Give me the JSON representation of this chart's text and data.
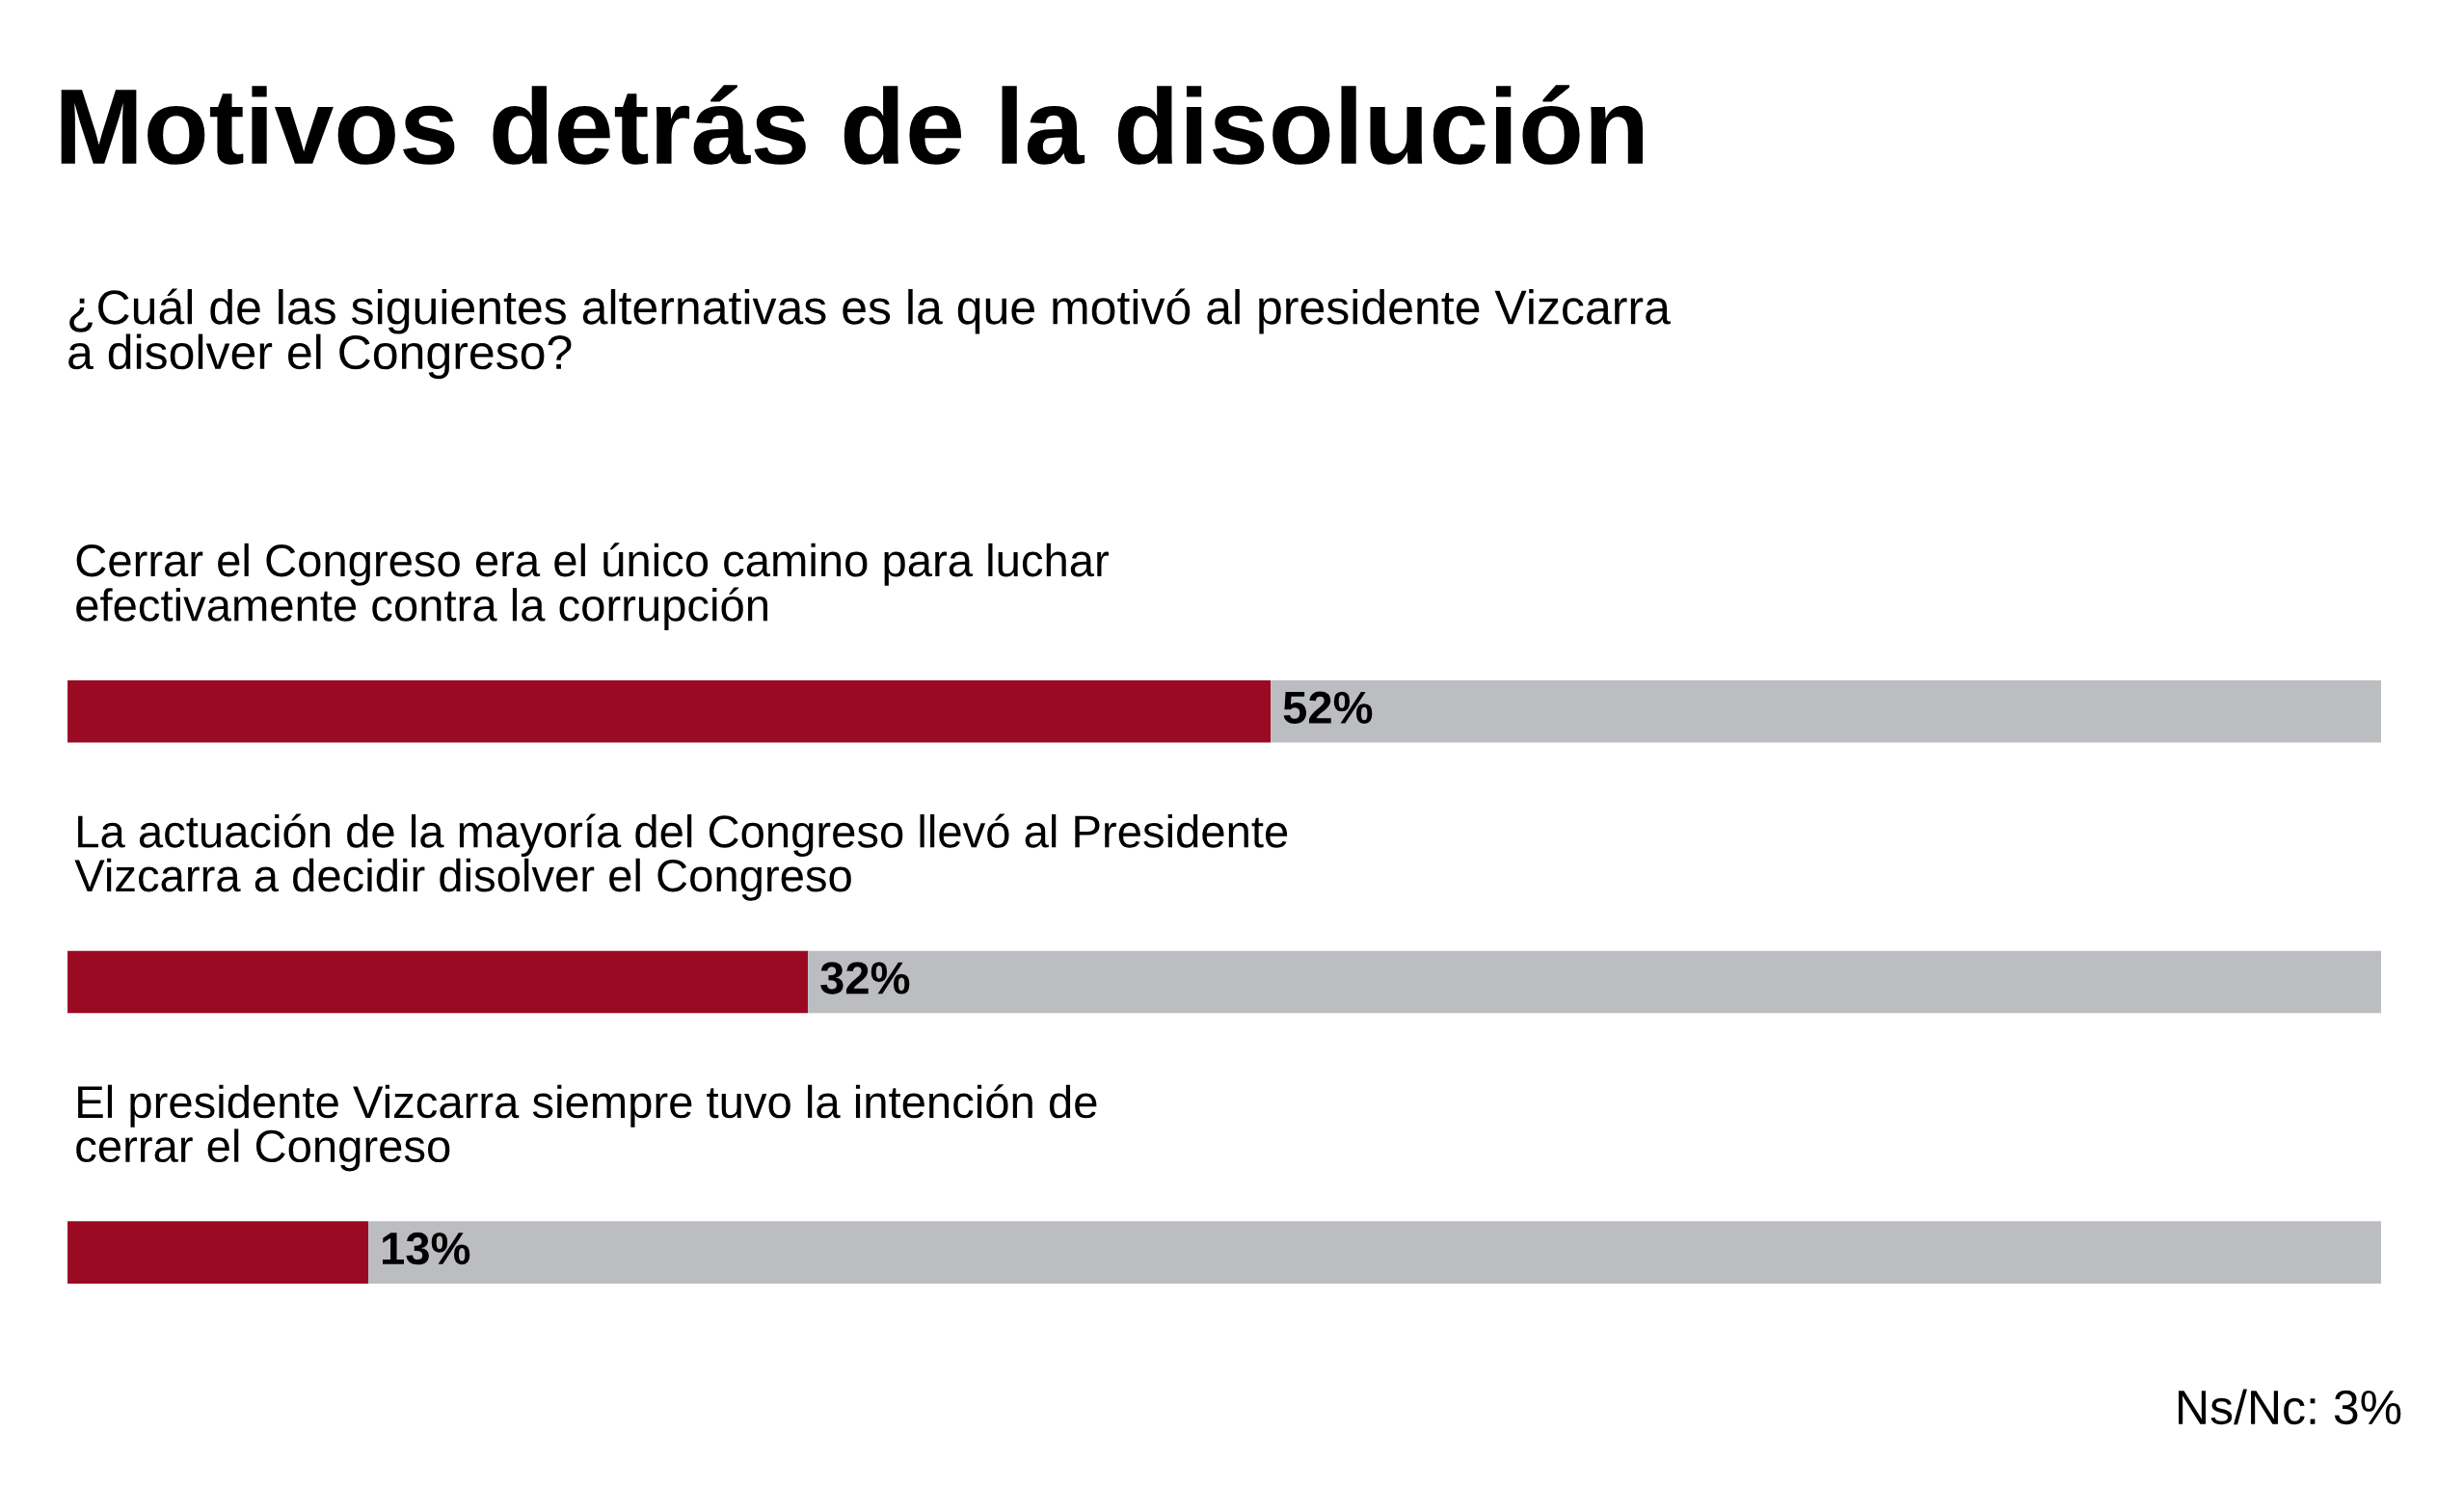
{
  "chart_data": {
    "type": "bar",
    "orientation": "horizontal",
    "stacked": true,
    "title": "Motivos detrás de la disolución",
    "subtitle": "¿Cuál de las siguientes alternativas es la que motivó al presidente Vizcarra\na disolver el Congreso?",
    "categories": [
      "Cerrar el Congreso era el único camino para luchar\nefectivamente contra la corrupción",
      "La actuación de la mayoría del Congreso llevó al Presidente\nVizcarra a decidir disolver el Congreso",
      "El presidente Vizcarra siempre tuvo la intención de\ncerrar el Congreso"
    ],
    "series": [
      {
        "color": "#9b0a23",
        "values": [
          52,
          32,
          13
        ],
        "value_labels": [
          "52%",
          "32%",
          "13%"
        ]
      },
      {
        "color": "#bcbdc0",
        "values": [
          48,
          68,
          87
        ]
      }
    ],
    "tick_labels": false,
    "annotations": [
      "Ns/Nc: 3%"
    ]
  }
}
